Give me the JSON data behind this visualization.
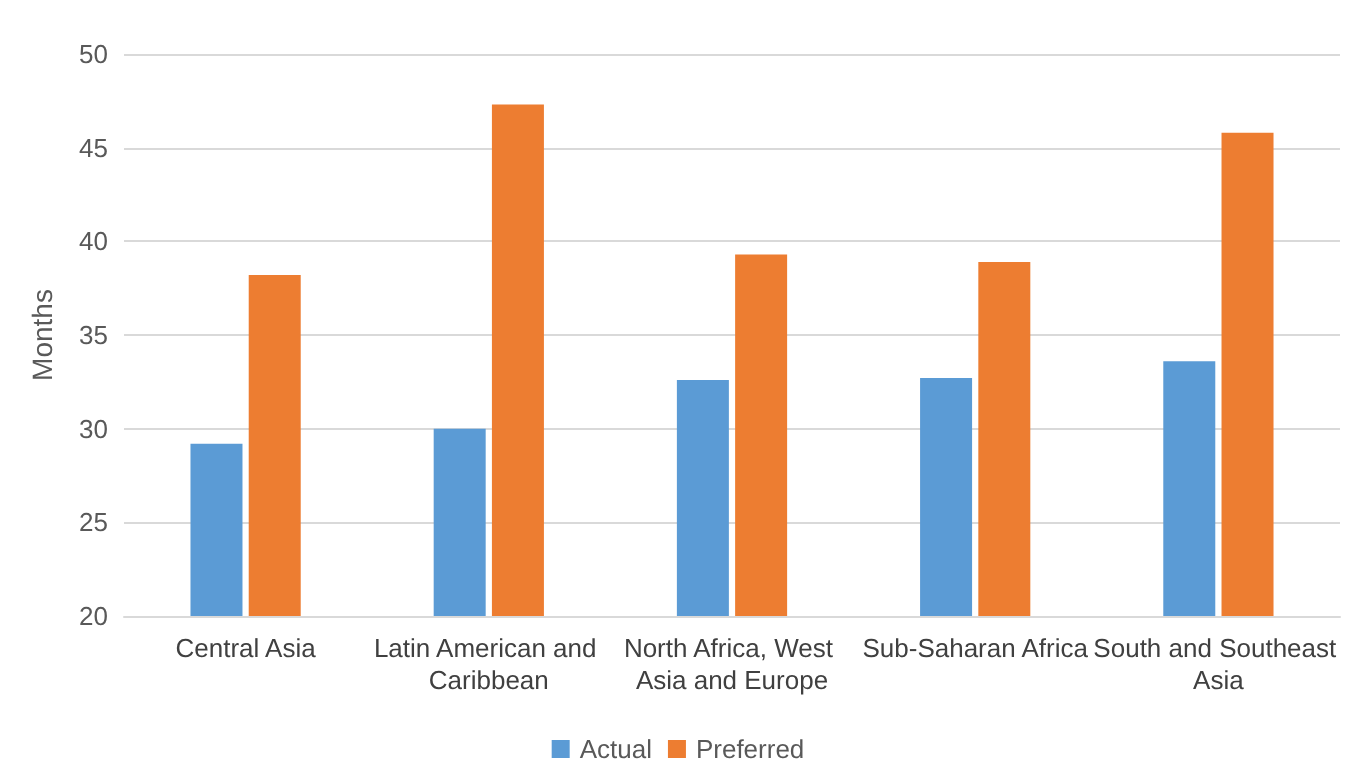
{
  "chart_data": {
    "type": "bar",
    "ylabel": "Months",
    "categories": [
      "Central Asia",
      "Latin American and Caribbean",
      "North Africa, West Asia and Europe",
      "Sub-Saharan Africa",
      "South and Southeast Asia"
    ],
    "series": [
      {
        "name": "Actual",
        "color": "#5b9bd5",
        "values": [
          29.2,
          30.0,
          32.6,
          32.7,
          33.6
        ]
      },
      {
        "name": "Preferred",
        "color": "#ed7d31",
        "values": [
          38.2,
          47.3,
          39.3,
          38.9,
          45.8
        ]
      }
    ],
    "ylim": [
      20,
      50
    ],
    "yticks": [
      20,
      25,
      30,
      35,
      40,
      45,
      50
    ],
    "grid": "y",
    "legend": "bottom"
  }
}
